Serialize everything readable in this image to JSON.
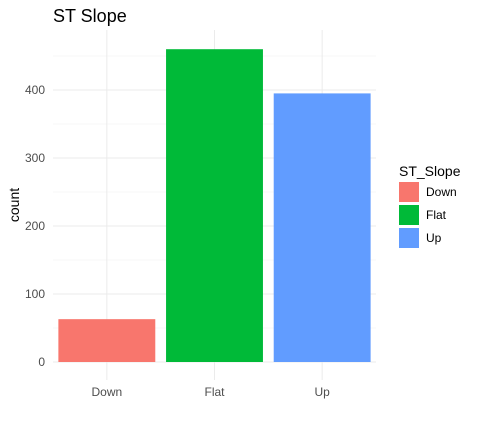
{
  "chart_data": {
    "type": "bar",
    "title": "ST Slope",
    "xlabel": "",
    "ylabel": "count",
    "categories": [
      "Down",
      "Flat",
      "Up"
    ],
    "values": [
      63,
      460,
      395
    ],
    "colors": [
      "#F8766D",
      "#00BA38",
      "#619CFF"
    ],
    "ylim": [
      0,
      480
    ],
    "yticks": [
      0,
      100,
      200,
      300,
      400
    ],
    "grid": true,
    "legend": {
      "title": "ST_Slope",
      "position": "right",
      "items": [
        "Down",
        "Flat",
        "Up"
      ]
    }
  }
}
